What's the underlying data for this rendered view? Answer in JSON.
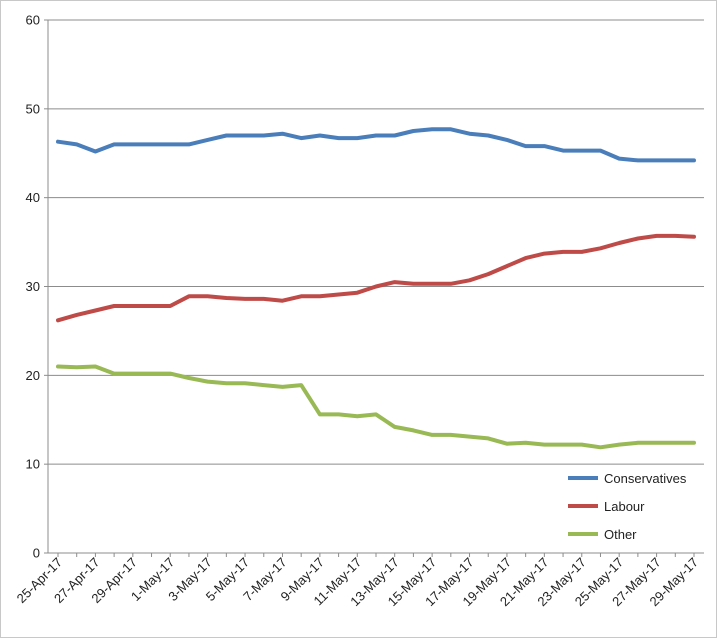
{
  "chart_data": {
    "type": "line",
    "title": "",
    "xlabel": "",
    "ylabel": "",
    "ylim": [
      0,
      60
    ],
    "yticks": [
      0,
      10,
      20,
      30,
      40,
      50,
      60
    ],
    "grid": "horizontal",
    "legend_position": "bottom-right",
    "x": [
      "25-Apr-17",
      "26-Apr-17",
      "27-Apr-17",
      "28-Apr-17",
      "29-Apr-17",
      "30-Apr-17",
      "1-May-17",
      "2-May-17",
      "3-May-17",
      "4-May-17",
      "5-May-17",
      "6-May-17",
      "7-May-17",
      "8-May-17",
      "9-May-17",
      "10-May-17",
      "11-May-17",
      "12-May-17",
      "13-May-17",
      "14-May-17",
      "15-May-17",
      "16-May-17",
      "17-May-17",
      "18-May-17",
      "19-May-17",
      "20-May-17",
      "21-May-17",
      "22-May-17",
      "23-May-17",
      "24-May-17",
      "25-May-17",
      "26-May-17",
      "27-May-17",
      "28-May-17",
      "29-May-17"
    ],
    "xtick_labels": [
      "25-Apr-17",
      "27-Apr-17",
      "29-Apr-17",
      "1-May-17",
      "3-May-17",
      "5-May-17",
      "7-May-17",
      "9-May-17",
      "11-May-17",
      "13-May-17",
      "15-May-17",
      "17-May-17",
      "19-May-17",
      "21-May-17",
      "23-May-17",
      "25-May-17",
      "27-May-17",
      "29-May-17"
    ],
    "series": [
      {
        "name": "Conservatives",
        "color": "#4a7ebb",
        "values": [
          46.3,
          46.0,
          45.2,
          46.0,
          46.0,
          46.0,
          46.0,
          46.0,
          46.5,
          47.0,
          47.0,
          47.0,
          47.2,
          46.7,
          47.0,
          46.7,
          46.7,
          47.0,
          47.0,
          47.5,
          47.7,
          47.7,
          47.2,
          47.0,
          46.5,
          45.8,
          45.8,
          45.3,
          45.3,
          45.3,
          44.4,
          44.2,
          44.2,
          44.2,
          44.2
        ]
      },
      {
        "name": "Labour",
        "color": "#be4b48",
        "values": [
          26.2,
          26.8,
          27.3,
          27.8,
          27.8,
          27.8,
          27.8,
          28.9,
          28.9,
          28.7,
          28.6,
          28.6,
          28.4,
          28.9,
          28.9,
          29.1,
          29.3,
          30.0,
          30.5,
          30.3,
          30.3,
          30.3,
          30.7,
          31.4,
          32.3,
          33.2,
          33.7,
          33.9,
          33.9,
          34.3,
          34.9,
          35.4,
          35.7,
          35.7,
          35.6
        ]
      },
      {
        "name": "Other",
        "color": "#98b954",
        "values": [
          21.0,
          20.9,
          21.0,
          20.2,
          20.2,
          20.2,
          20.2,
          19.7,
          19.3,
          19.1,
          19.1,
          18.9,
          18.7,
          18.9,
          15.6,
          15.6,
          15.4,
          15.6,
          14.2,
          13.8,
          13.3,
          13.3,
          13.1,
          12.9,
          12.3,
          12.4,
          12.2,
          12.2,
          12.2,
          11.9,
          12.2,
          12.4,
          12.4,
          12.4,
          12.4
        ]
      }
    ]
  }
}
